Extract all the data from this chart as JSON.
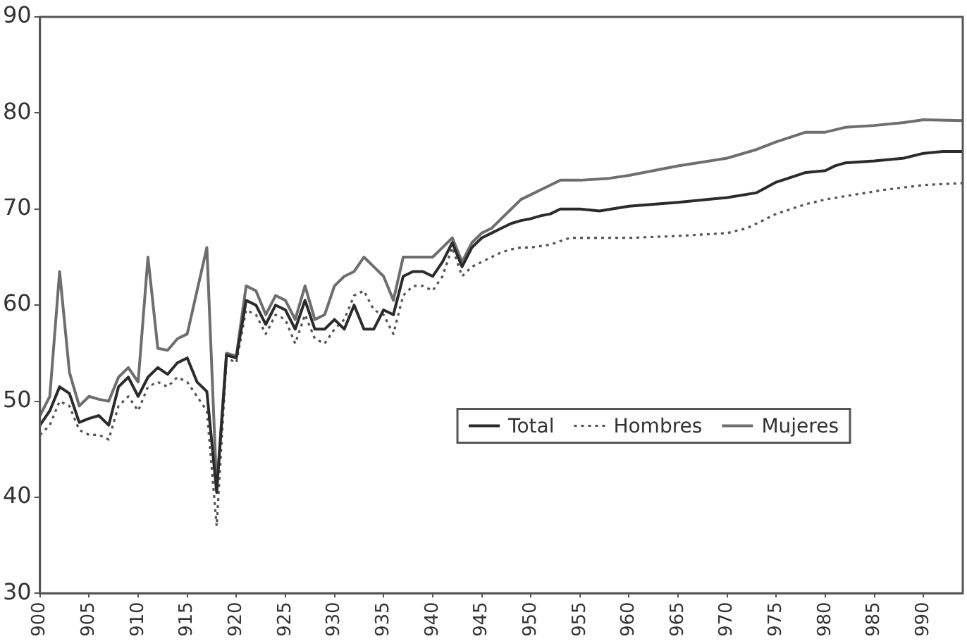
{
  "chart_data": {
    "type": "line",
    "xlim": [
      900,
      994
    ],
    "xticks": [
      900,
      905,
      910,
      915,
      920,
      925,
      930,
      935,
      940,
      945,
      950,
      955,
      960,
      965,
      970,
      975,
      980,
      985,
      990
    ],
    "ylim": [
      30,
      90
    ],
    "yticks": [
      30,
      40,
      50,
      60,
      70,
      80,
      90
    ],
    "grid": false,
    "legend": "right",
    "marker": "none",
    "series": [
      {
        "name": "Total",
        "color": "#2b2b2b",
        "line_style": "solid",
        "x": [
          900,
          901,
          902,
          903,
          904,
          905,
          906,
          907,
          908,
          909,
          910,
          911,
          912,
          913,
          914,
          915,
          916,
          917,
          918,
          919,
          920,
          921,
          922,
          923,
          924,
          925,
          926,
          927,
          928,
          929,
          930,
          931,
          932,
          933,
          934,
          935,
          936,
          937,
          938,
          939,
          940,
          941,
          942,
          943,
          944,
          945,
          946,
          947,
          948,
          949,
          950,
          951,
          952,
          953,
          955,
          957,
          960,
          965,
          970,
          973,
          975,
          978,
          980,
          981,
          982,
          985,
          988,
          990,
          992,
          994
        ],
        "values": [
          47.5,
          49,
          51.5,
          50.8,
          47.8,
          48.2,
          48.5,
          47.5,
          51.5,
          52.5,
          50.5,
          52.5,
          53.5,
          52.8,
          54,
          54.5,
          52,
          51,
          40.5,
          54.8,
          54.5,
          60.5,
          60,
          58,
          60,
          59.5,
          57.5,
          60.5,
          57.5,
          57.5,
          58.5,
          57.5,
          60,
          57.5,
          57.5,
          59.5,
          59,
          63,
          63.5,
          63.5,
          63,
          64.5,
          66.5,
          64,
          66,
          67,
          67.5,
          68,
          68.5,
          68.8,
          69,
          69.3,
          69.5,
          70,
          70,
          69.8,
          70.3,
          70.7,
          71.2,
          71.7,
          72.8,
          73.8,
          74,
          74.5,
          74.8,
          75,
          75.3,
          75.8,
          76,
          76
        ]
      },
      {
        "name": "Hombres",
        "color": "#555555",
        "line_style": "dotted",
        "x": [
          900,
          901,
          902,
          903,
          904,
          905,
          906,
          907,
          908,
          909,
          910,
          911,
          912,
          913,
          914,
          915,
          916,
          917,
          918,
          919,
          920,
          921,
          922,
          923,
          924,
          925,
          926,
          927,
          928,
          929,
          930,
          931,
          932,
          933,
          934,
          935,
          936,
          937,
          938,
          939,
          940,
          941,
          942,
          943,
          944,
          945,
          946,
          947,
          948,
          949,
          950,
          952,
          954,
          955,
          958,
          960,
          965,
          970,
          972,
          975,
          978,
          980,
          983,
          986,
          990,
          994
        ],
        "values": [
          46.5,
          47.5,
          50,
          49.5,
          47,
          46.5,
          46.5,
          46,
          49.5,
          50.5,
          49,
          51.5,
          52,
          51.5,
          52.5,
          52,
          50.5,
          49,
          37,
          54.5,
          54,
          59.5,
          59,
          57,
          59,
          58.5,
          56,
          59,
          56.5,
          56,
          57.5,
          58.5,
          61,
          61.5,
          59.5,
          59,
          57,
          61,
          62,
          62,
          61.5,
          63,
          66,
          63,
          64,
          64.5,
          65,
          65.5,
          65.8,
          66,
          66,
          66.3,
          67,
          67,
          67,
          67,
          67.2,
          67.5,
          68,
          69.5,
          70.5,
          71,
          71.5,
          72,
          72.5,
          72.7
        ]
      },
      {
        "name": "Mujeres",
        "color": "#6e6e6e",
        "line_style": "solid",
        "x": [
          900,
          901,
          902,
          903,
          904,
          905,
          906,
          907,
          908,
          909,
          910,
          911,
          912,
          913,
          914,
          915,
          916,
          917,
          918,
          919,
          920,
          921,
          922,
          923,
          924,
          925,
          926,
          927,
          928,
          929,
          930,
          931,
          932,
          933,
          934,
          935,
          936,
          937,
          938,
          939,
          940,
          941,
          942,
          943,
          944,
          945,
          946,
          947,
          948,
          949,
          950,
          951,
          952,
          953,
          955,
          958,
          960,
          965,
          970,
          973,
          975,
          978,
          980,
          982,
          985,
          988,
          990,
          994
        ],
        "values": [
          48.5,
          50.5,
          63.5,
          53,
          49.5,
          50.5,
          50.2,
          50,
          52.5,
          53.5,
          52,
          65,
          55.5,
          55.3,
          56.5,
          57,
          61.5,
          66,
          41,
          55,
          54.7,
          62,
          61.5,
          59,
          61,
          60.5,
          58.5,
          62,
          58.5,
          59,
          62,
          63,
          63.5,
          65,
          64,
          63,
          60.5,
          65,
          65,
          65,
          65,
          66,
          67,
          64.5,
          66.5,
          67.5,
          68,
          69,
          70,
          71,
          71.5,
          72,
          72.5,
          73,
          73,
          73.2,
          73.5,
          74.5,
          75.3,
          76.2,
          77,
          78,
          78,
          78.5,
          78.7,
          79,
          79.3,
          79.2
        ]
      }
    ]
  }
}
